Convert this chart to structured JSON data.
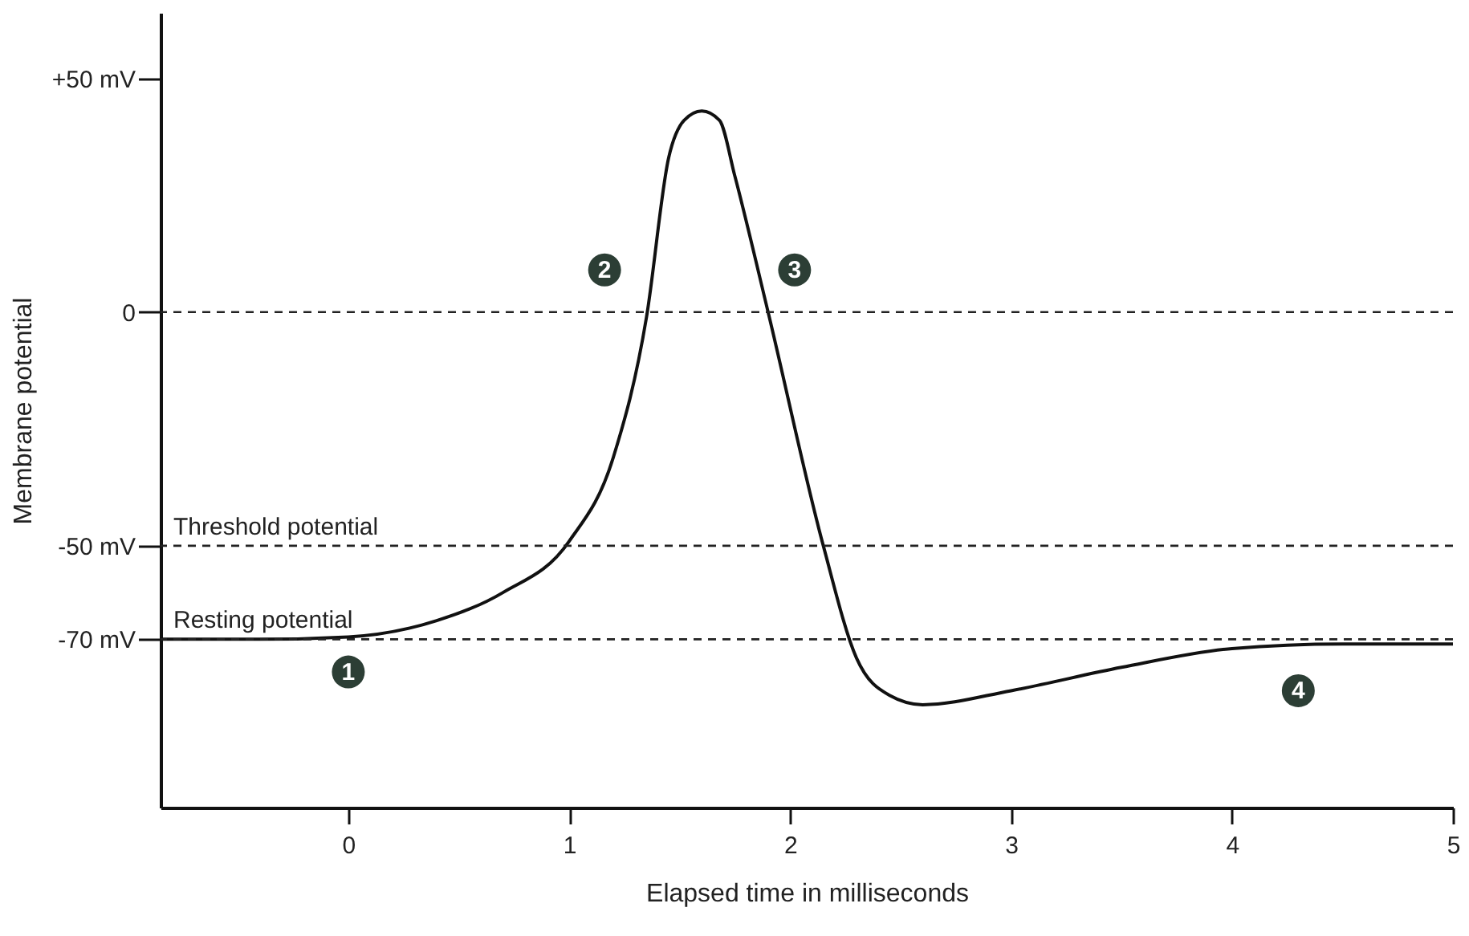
{
  "chart_data": {
    "type": "line",
    "xlabel": "Elapsed time in milliseconds",
    "ylabel": "Membrane potential",
    "x": [
      -0.85,
      -0.4,
      0,
      0.4,
      0.7,
      1,
      1.2,
      1.35,
      1.45,
      1.52,
      1.6,
      1.68,
      1.75,
      1.9,
      2.15,
      2.3,
      2.45,
      2.6,
      3,
      3.5,
      4,
      4.5,
      5
    ],
    "series": [
      {
        "color": "#111111",
        "values": [
          -70,
          -70,
          -69.5,
          -66,
          -60,
          -49,
          -31,
          -1,
          33,
          41,
          43,
          41,
          29,
          0,
          -50,
          -74,
          -82,
          -84,
          -81,
          -76,
          -72,
          -71,
          -71
        ]
      }
    ],
    "xlim": [
      -0.85,
      5
    ],
    "ylim": [
      -106,
      64
    ],
    "xticks": [
      0,
      1,
      2,
      3,
      4,
      5
    ],
    "yticks": [
      {
        "value": 50,
        "label": "+50 mV"
      },
      0,
      {
        "value": -50,
        "label": "-50 mV"
      },
      {
        "value": -70,
        "label": "-70 mV"
      }
    ],
    "ref_lines": [
      {
        "axis": "y",
        "value": 0,
        "label": null,
        "line_style": "dashed"
      },
      {
        "axis": "y",
        "value": -50,
        "label": "Threshold potential",
        "line_style": "dashed"
      },
      {
        "axis": "y",
        "value": -70,
        "label": "Resting potential",
        "line_style": "dashed"
      }
    ],
    "annotations": [
      {
        "text": "1",
        "x": 0,
        "y": -77
      },
      {
        "text": "2",
        "x": 1.16,
        "y": 9
      },
      {
        "text": "3",
        "x": 2.02,
        "y": 9
      },
      {
        "text": "4",
        "x": 4.3,
        "y": -81
      }
    ],
    "grid": false,
    "marker": "none",
    "line_style": "solid"
  }
}
